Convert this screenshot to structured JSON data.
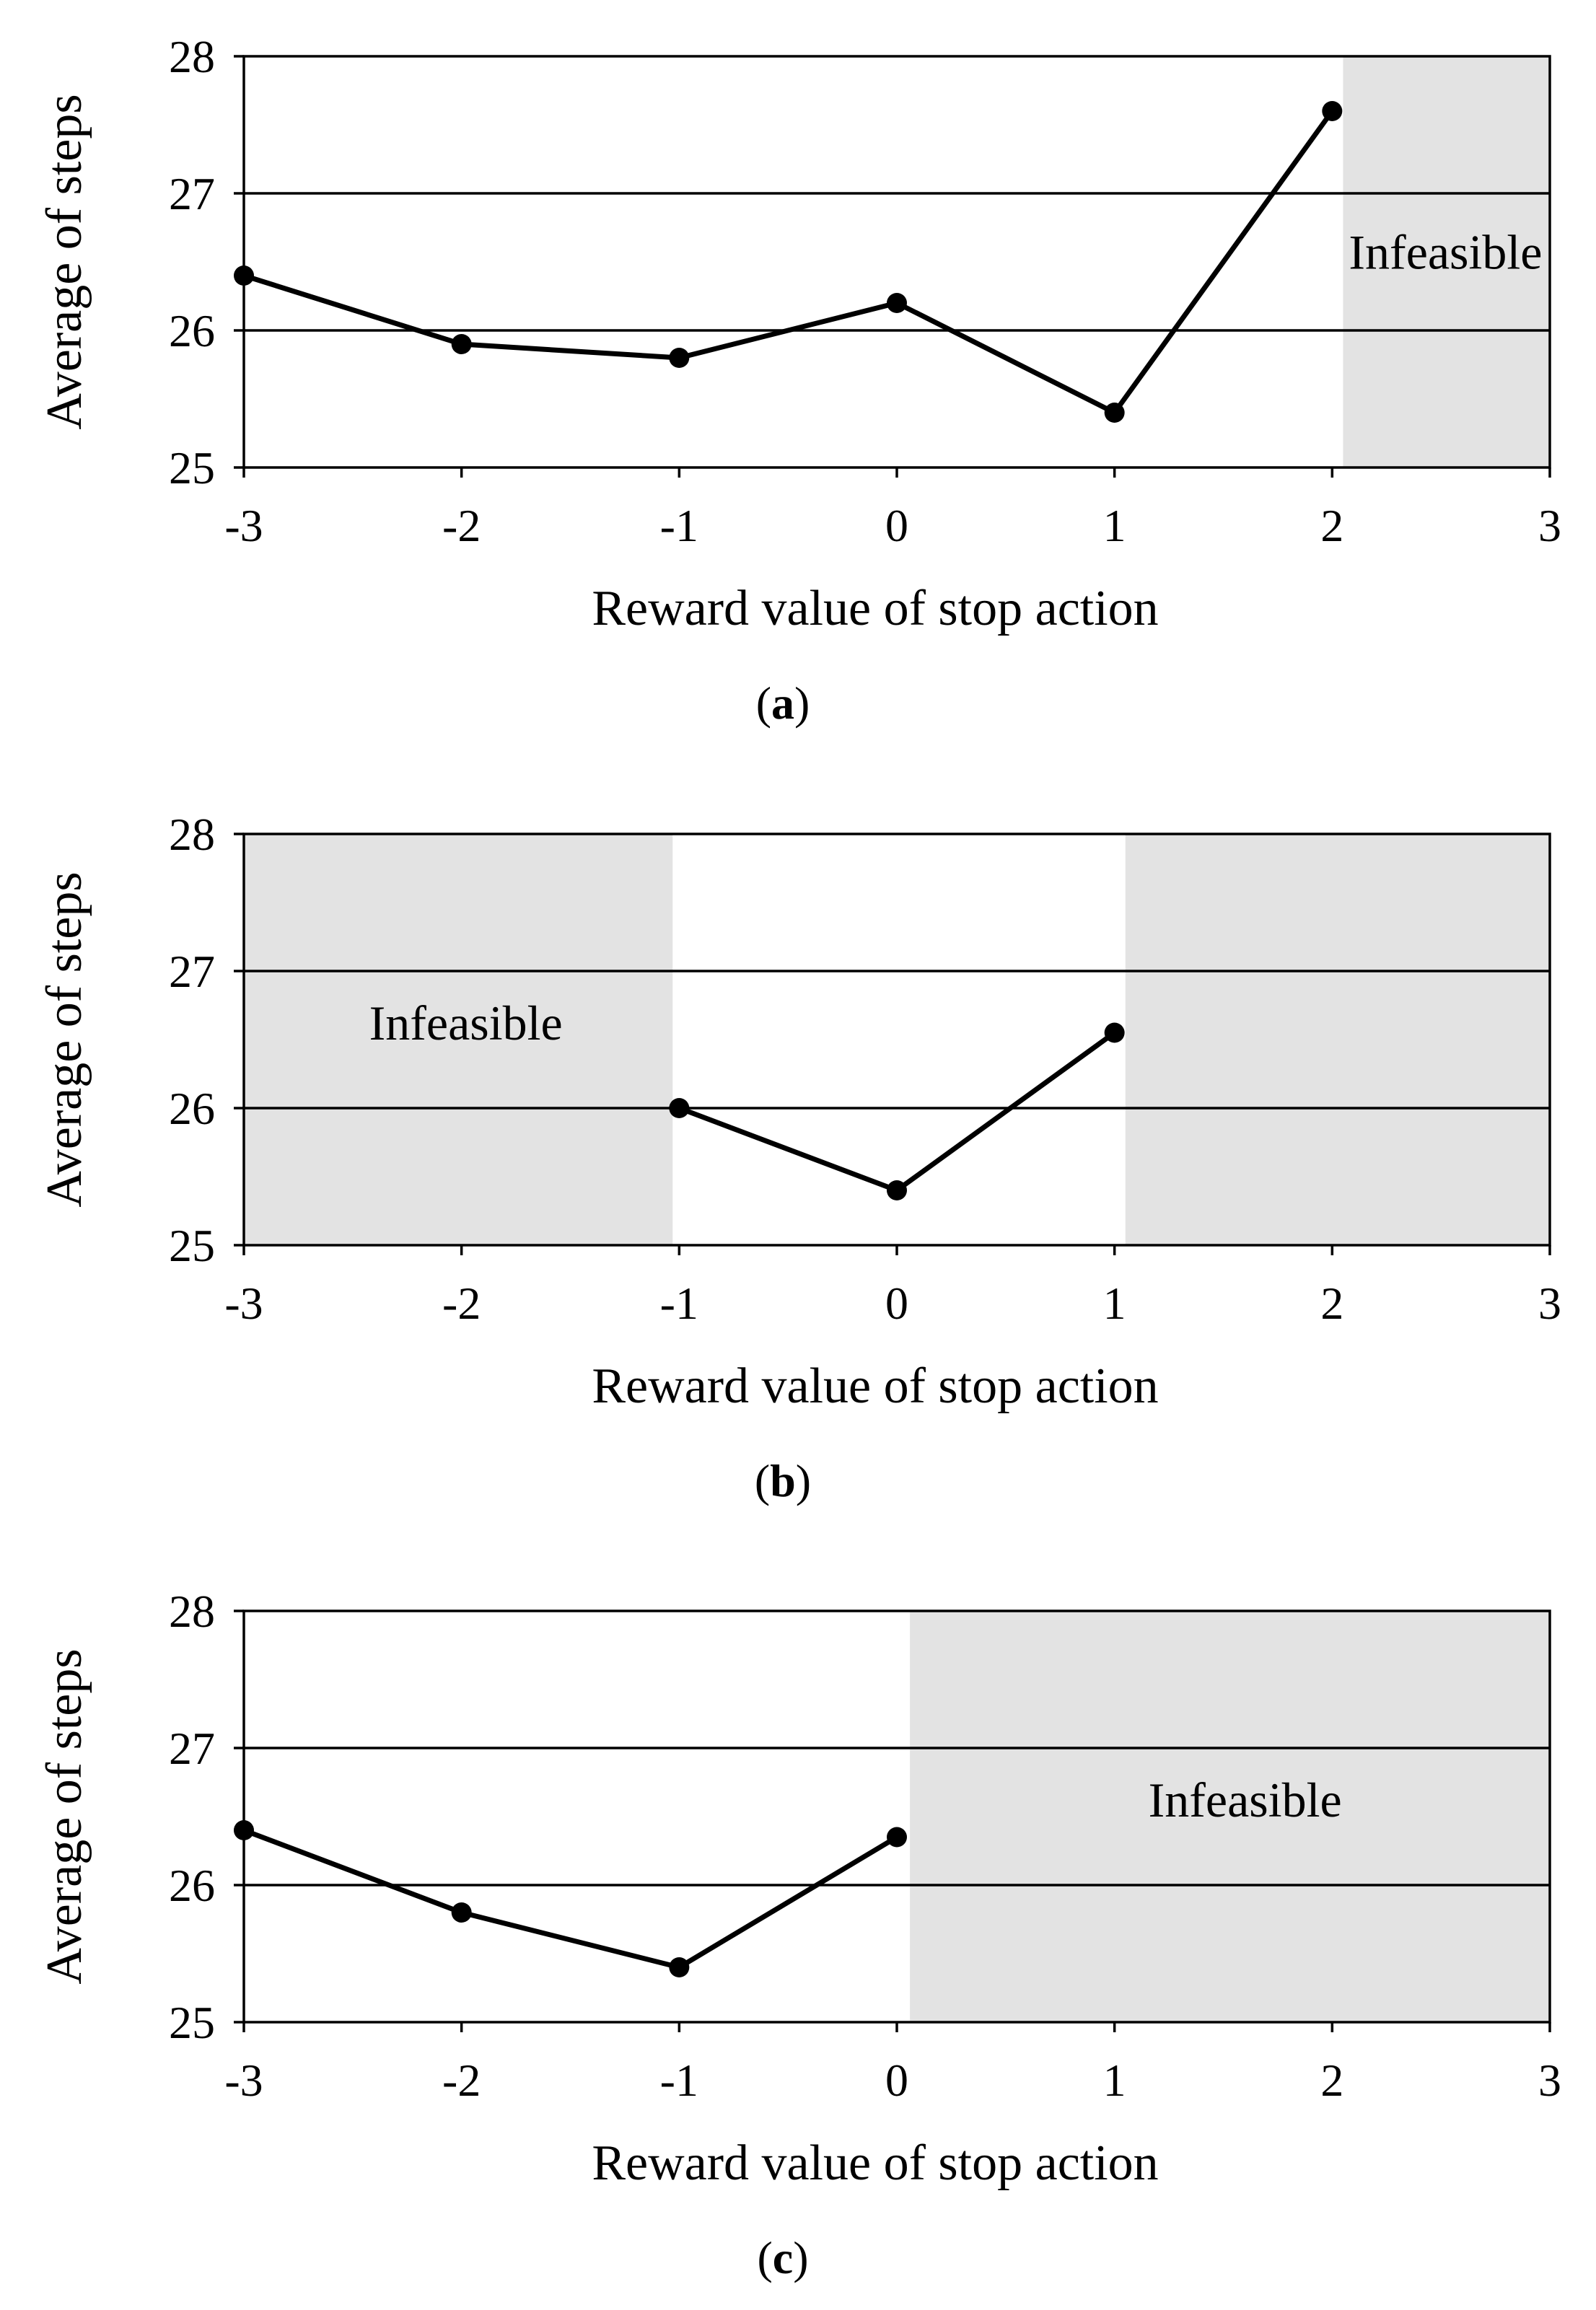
{
  "chart_data": [
    {
      "type": "line",
      "panel_label": "a",
      "xlabel": "Reward value of stop action",
      "ylabel": "Average of steps",
      "xlim": [
        -3,
        3
      ],
      "ylim": [
        25,
        28
      ],
      "xticks": [
        "-3",
        "-2",
        "-1",
        "0",
        "1",
        "2",
        "3"
      ],
      "yticks": [
        "25",
        "26",
        "27",
        "28"
      ],
      "grid_y": [
        26,
        27
      ],
      "series": [
        {
          "name": "Average of steps",
          "x": [
            -3,
            -2,
            -1,
            0,
            1,
            2
          ],
          "y": [
            26.4,
            25.9,
            25.8,
            26.2,
            25.4,
            27.6
          ]
        }
      ],
      "infeasible_regions": [
        {
          "x_from": 2.05,
          "x_to": 3,
          "label": "Infeasible"
        }
      ]
    },
    {
      "type": "line",
      "panel_label": "b",
      "xlabel": "Reward value of stop action",
      "ylabel": "Average of steps",
      "xlim": [
        -3,
        3
      ],
      "ylim": [
        25,
        28
      ],
      "xticks": [
        "-3",
        "-2",
        "-1",
        "0",
        "1",
        "2",
        "3"
      ],
      "yticks": [
        "25",
        "26",
        "27",
        "28"
      ],
      "grid_y": [
        26,
        27
      ],
      "series": [
        {
          "name": "Average of steps",
          "x": [
            -1,
            0,
            1
          ],
          "y": [
            26.0,
            25.4,
            26.55
          ]
        }
      ],
      "infeasible_regions": [
        {
          "x_from": -3,
          "x_to": -1.03,
          "label": "Infeasible"
        },
        {
          "x_from": 1.05,
          "x_to": 3,
          "label": ""
        }
      ]
    },
    {
      "type": "line",
      "panel_label": "c",
      "xlabel": "Reward value of stop action",
      "ylabel": "Average of steps",
      "xlim": [
        -3,
        3
      ],
      "ylim": [
        25,
        28
      ],
      "xticks": [
        "-3",
        "-2",
        "-1",
        "0",
        "1",
        "2",
        "3"
      ],
      "yticks": [
        "25",
        "26",
        "27",
        "28"
      ],
      "grid_y": [
        26,
        27
      ],
      "series": [
        {
          "name": "Average of steps",
          "x": [
            -3,
            -2,
            -1,
            0
          ],
          "y": [
            26.4,
            25.8,
            25.4,
            26.35
          ]
        }
      ],
      "infeasible_regions": [
        {
          "x_from": 0.06,
          "x_to": 3,
          "label": "Infeasible"
        }
      ]
    }
  ],
  "colors": {
    "line": "#000000",
    "marker": "#000000",
    "infeasible_fill": "#e3e3e3",
    "frame": "#000000"
  }
}
